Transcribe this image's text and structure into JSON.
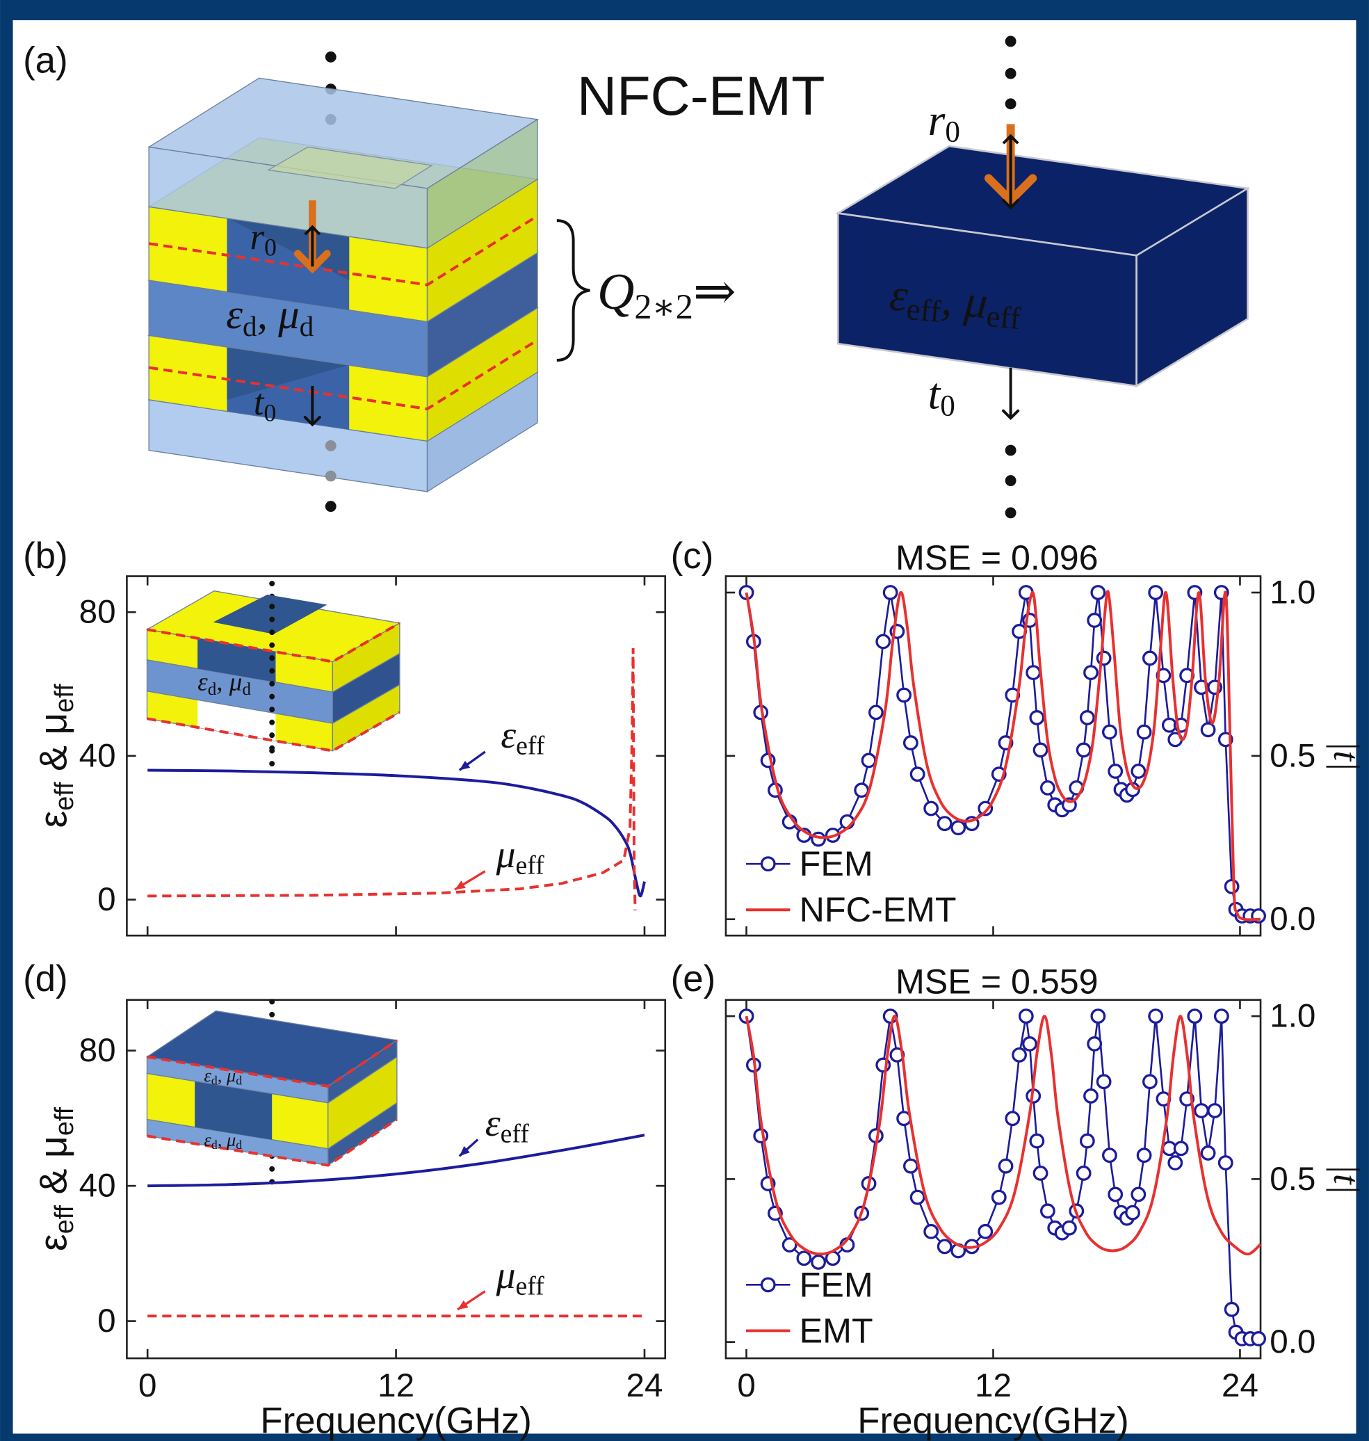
{
  "panel_a": {
    "label": "(a)",
    "title": "NFC-EMT",
    "left": {
      "r": [
        "r",
        {
          "sub": "0"
        }
      ],
      "t": [
        "t",
        {
          "sub": "0"
        }
      ],
      "material": [
        "ε",
        {
          "sub": "d"
        },
        ", μ",
        {
          "sub": "d"
        }
      ]
    },
    "operator": [
      "Q",
      {
        "sub": "2∗2"
      },
      "⇒"
    ],
    "right": {
      "r": [
        "r",
        {
          "sub": "0"
        }
      ],
      "t": [
        "t",
        {
          "sub": "0"
        }
      ],
      "material": [
        "ε",
        {
          "sub": "eff"
        },
        ", μ",
        {
          "sub": "eff"
        }
      ]
    }
  },
  "chart_data": [
    {
      "type": "line",
      "label": "(b)",
      "ylabel": [
        "ε",
        {
          "sub": "eff"
        },
        " & μ",
        {
          "sub": "eff"
        }
      ],
      "xlim": [
        -1,
        25
      ],
      "ylim": [
        -10,
        90
      ],
      "xticks": [
        0,
        12,
        24
      ],
      "xtick_labels": false,
      "yticks": [
        0,
        40,
        80
      ],
      "legend": "none",
      "inset_labels": [
        [
          "ε",
          {
            "sub": "d"
          },
          ", μ",
          {
            "sub": "d"
          }
        ]
      ],
      "series": [
        {
          "name": [
            "ε",
            {
              "sub": "eff"
            }
          ],
          "color": "#1c1c9c",
          "x": [
            0,
            4,
            8,
            12,
            16,
            18,
            20,
            21,
            22,
            22.5,
            23,
            23.3,
            23.6,
            23.8,
            24.0
          ],
          "values": [
            36,
            35.8,
            35.3,
            34.5,
            33,
            31.5,
            29,
            27,
            23.5,
            21,
            17,
            13,
            5,
            1,
            5
          ]
        },
        {
          "name": [
            "μ",
            {
              "sub": "eff"
            }
          ],
          "color": "#e8312f",
          "dash": true,
          "x": [
            0,
            8,
            14,
            18,
            20,
            22,
            23,
            23.3,
            23.4,
            23.45,
            23.5,
            23.55
          ],
          "values": [
            1,
            1.2,
            1.8,
            3,
            4.5,
            7.5,
            11,
            20,
            45,
            70,
            10,
            -3
          ]
        }
      ]
    },
    {
      "type": "line",
      "label": "(c)",
      "title": "MSE = 0.096",
      "ylabel": "|t|",
      "yaxis": "right",
      "xlim": [
        -1,
        25
      ],
      "ylim": [
        -0.05,
        1.05
      ],
      "xticks": [
        0,
        12,
        24
      ],
      "xtick_labels": false,
      "yticks": [
        {
          "value": 0,
          "label": "0.0"
        },
        0.5,
        {
          "value": 1,
          "label": "1.0"
        }
      ],
      "legend": "lower left",
      "series": [
        {
          "name": "FEM",
          "color": "#1c1c9c",
          "marker": "circle",
          "x": [
            0,
            0.35,
            0.7,
            1.05,
            1.4,
            2.1,
            2.8,
            3.5,
            4.2,
            4.9,
            5.6,
            5.95,
            6.3,
            6.65,
            7,
            7.33,
            7.66,
            7.99,
            8.32,
            8.98,
            9.64,
            10.3,
            10.96,
            11.62,
            12.28,
            12.61,
            12.94,
            13.27,
            13.6,
            13.775,
            13.95,
            14.125,
            14.3,
            14.65,
            15.0,
            15.35,
            15.7,
            16.05,
            16.4,
            16.575,
            16.75,
            16.925,
            17.1,
            17.38,
            17.66,
            17.94,
            18.22,
            18.5,
            18.78,
            19.06,
            19.34,
            19.62,
            19.9,
            20.28,
            20.565,
            20.85,
            21.135,
            21.42,
            21.8,
            22.125,
            22.45,
            22.775,
            23.1,
            23.3,
            23.6,
            23.8,
            24.1,
            24.5,
            24.9
          ],
          "values": [
            1.0,
            0.85,
            0.633,
            0.486,
            0.395,
            0.298,
            0.257,
            0.245,
            0.257,
            0.298,
            0.395,
            0.486,
            0.633,
            0.85,
            1.0,
            0.881,
            0.686,
            0.54,
            0.444,
            0.339,
            0.293,
            0.28,
            0.293,
            0.339,
            0.444,
            0.54,
            0.686,
            0.881,
            1.0,
            0.915,
            0.755,
            0.617,
            0.518,
            0.402,
            0.35,
            0.335,
            0.35,
            0.402,
            0.518,
            0.617,
            0.755,
            0.915,
            1.0,
            0.799,
            0.573,
            0.453,
            0.397,
            0.38,
            0.397,
            0.453,
            0.573,
            0.799,
            1.0,
            0.746,
            0.594,
            0.55,
            0.594,
            0.746,
            1.0,
            0.71,
            0.58,
            0.71,
            1.0,
            0.55,
            0.1,
            0.03,
            0.01,
            0.01,
            0.01
          ]
        },
        {
          "name": "NFC-EMT",
          "color": "#e8312f",
          "x": [
            0,
            0.375,
            0.75,
            1.5,
            2.25,
            3.0,
            3.75,
            4.5,
            5.25,
            6.0,
            6.75,
            7.125,
            7.5,
            7.82,
            8.14,
            8.78,
            9.42,
            10.06,
            10.7,
            11.34,
            11.98,
            12.62,
            13.26,
            13.58,
            13.9,
            14.085,
            14.27,
            14.64,
            15.01,
            15.38,
            15.75,
            16.12,
            16.49,
            16.86,
            17.23,
            17.415,
            17.6,
            17.88,
            18.16,
            18.44,
            18.72,
            19.0,
            19.28,
            19.56,
            19.84,
            20.12,
            20.4,
            20.72,
            20.96,
            21.2,
            21.44,
            21.68,
            22.0,
            22.325,
            22.65,
            22.975,
            23.3,
            23.5,
            23.7,
            23.85,
            24.2,
            25
          ],
          "values": [
            1.0,
            0.855,
            0.641,
            0.402,
            0.304,
            0.262,
            0.25,
            0.262,
            0.304,
            0.402,
            0.641,
            0.855,
            1.0,
            0.895,
            0.713,
            0.472,
            0.362,
            0.314,
            0.3,
            0.314,
            0.362,
            0.472,
            0.713,
            0.895,
            1.0,
            0.927,
            0.781,
            0.549,
            0.43,
            0.376,
            0.36,
            0.376,
            0.43,
            0.549,
            0.781,
            0.927,
            1.0,
            0.816,
            0.596,
            0.475,
            0.417,
            0.4,
            0.417,
            0.475,
            0.596,
            0.816,
            1.0,
            0.746,
            0.594,
            0.55,
            0.594,
            0.746,
            1.0,
            0.728,
            0.6,
            0.728,
            1.0,
            0.6,
            0.1,
            0.02,
            0.0,
            0.0
          ]
        }
      ]
    },
    {
      "type": "line",
      "label": "(d)",
      "ylabel": [
        "ε",
        {
          "sub": "eff"
        },
        " & μ",
        {
          "sub": "eff"
        }
      ],
      "xlabel": "Frequency(GHz)",
      "xlim": [
        -1,
        25
      ],
      "ylim": [
        -11,
        95
      ],
      "xticks": [
        0,
        12,
        24
      ],
      "yticks": [
        0,
        40,
        80
      ],
      "legend": "none",
      "inset_labels": [
        [
          "ε",
          {
            "sub": "d"
          },
          ", μ",
          {
            "sub": "d"
          }
        ],
        [
          "ε",
          {
            "sub": "d"
          },
          ", μ",
          {
            "sub": "d"
          }
        ]
      ],
      "series": [
        {
          "name": [
            "ε",
            {
              "sub": "eff"
            }
          ],
          "color": "#1c1c9c",
          "x": [
            0,
            4,
            8,
            12,
            16,
            20,
            24
          ],
          "values": [
            40,
            40.4,
            41.5,
            43.5,
            46.5,
            50.5,
            55
          ]
        },
        {
          "name": [
            "μ",
            {
              "sub": "eff"
            }
          ],
          "color": "#e8312f",
          "dash": true,
          "x": [
            0,
            24
          ],
          "values": [
            1.5,
            1.5
          ]
        }
      ]
    },
    {
      "type": "line",
      "label": "(e)",
      "title": "MSE = 0.559",
      "ylabel": "|t|",
      "yaxis": "right",
      "xlabel": "Frequency(GHz)",
      "xlim": [
        -1,
        25
      ],
      "ylim": [
        -0.05,
        1.05
      ],
      "xticks": [
        0,
        12,
        24
      ],
      "yticks": [
        {
          "value": 0,
          "label": "0.0"
        },
        0.5,
        {
          "value": 1,
          "label": "1.0"
        }
      ],
      "legend": "lower left",
      "series": [
        {
          "name": "FEM",
          "color": "#1c1c9c",
          "marker": "circle",
          "x": [
            0,
            0.35,
            0.7,
            1.05,
            1.4,
            2.1,
            2.8,
            3.5,
            4.2,
            4.9,
            5.6,
            5.95,
            6.3,
            6.65,
            7,
            7.33,
            7.66,
            7.99,
            8.32,
            8.98,
            9.64,
            10.3,
            10.96,
            11.62,
            12.28,
            12.61,
            12.94,
            13.27,
            13.6,
            13.775,
            13.95,
            14.125,
            14.3,
            14.65,
            15.0,
            15.35,
            15.7,
            16.05,
            16.4,
            16.575,
            16.75,
            16.925,
            17.1,
            17.38,
            17.66,
            17.94,
            18.22,
            18.5,
            18.78,
            19.06,
            19.34,
            19.62,
            19.9,
            20.28,
            20.565,
            20.85,
            21.135,
            21.42,
            21.8,
            22.125,
            22.45,
            22.775,
            23.1,
            23.3,
            23.6,
            23.8,
            24.1,
            24.5,
            24.9
          ],
          "values": [
            1.0,
            0.85,
            0.633,
            0.486,
            0.395,
            0.298,
            0.257,
            0.245,
            0.257,
            0.298,
            0.395,
            0.486,
            0.633,
            0.85,
            1.0,
            0.881,
            0.686,
            0.54,
            0.444,
            0.339,
            0.293,
            0.28,
            0.293,
            0.339,
            0.444,
            0.54,
            0.686,
            0.881,
            1.0,
            0.915,
            0.755,
            0.617,
            0.518,
            0.402,
            0.35,
            0.335,
            0.35,
            0.402,
            0.518,
            0.617,
            0.755,
            0.915,
            1.0,
            0.799,
            0.573,
            0.453,
            0.397,
            0.38,
            0.397,
            0.453,
            0.573,
            0.799,
            1.0,
            0.746,
            0.594,
            0.55,
            0.594,
            0.746,
            1.0,
            0.71,
            0.58,
            0.71,
            1.0,
            0.55,
            0.1,
            0.03,
            0.01,
            0.01,
            0.01
          ]
        },
        {
          "name": "EMT",
          "color": "#e8312f",
          "x": [
            0,
            0.36,
            0.72,
            1.44,
            2.16,
            2.88,
            3.6,
            4.32,
            5.04,
            5.76,
            6.48,
            6.84,
            7.2,
            7.565,
            7.93,
            8.66,
            9.39,
            10.12,
            10.85,
            11.58,
            12.31,
            13.04,
            13.77,
            14.135,
            14.5,
            14.83,
            15.16,
            15.82,
            16.48,
            17.14,
            17.8,
            18.46,
            19.12,
            19.78,
            20.44,
            20.77,
            21.1,
            21.43,
            21.76,
            22.42,
            23.08,
            23.74,
            24.4,
            25.0
          ],
          "values": [
            1.0,
            0.873,
            0.672,
            0.431,
            0.327,
            0.283,
            0.27,
            0.283,
            0.327,
            0.431,
            0.672,
            0.873,
            1.0,
            0.889,
            0.7,
            0.458,
            0.351,
            0.304,
            0.29,
            0.304,
            0.351,
            0.458,
            0.7,
            0.889,
            1.0,
            0.881,
            0.686,
            0.444,
            0.339,
            0.293,
            0.28,
            0.293,
            0.339,
            0.444,
            0.686,
            0.881,
            1.0,
            0.881,
            0.686,
            0.444,
            0.339,
            0.293,
            0.27,
            0.3
          ]
        }
      ]
    }
  ]
}
